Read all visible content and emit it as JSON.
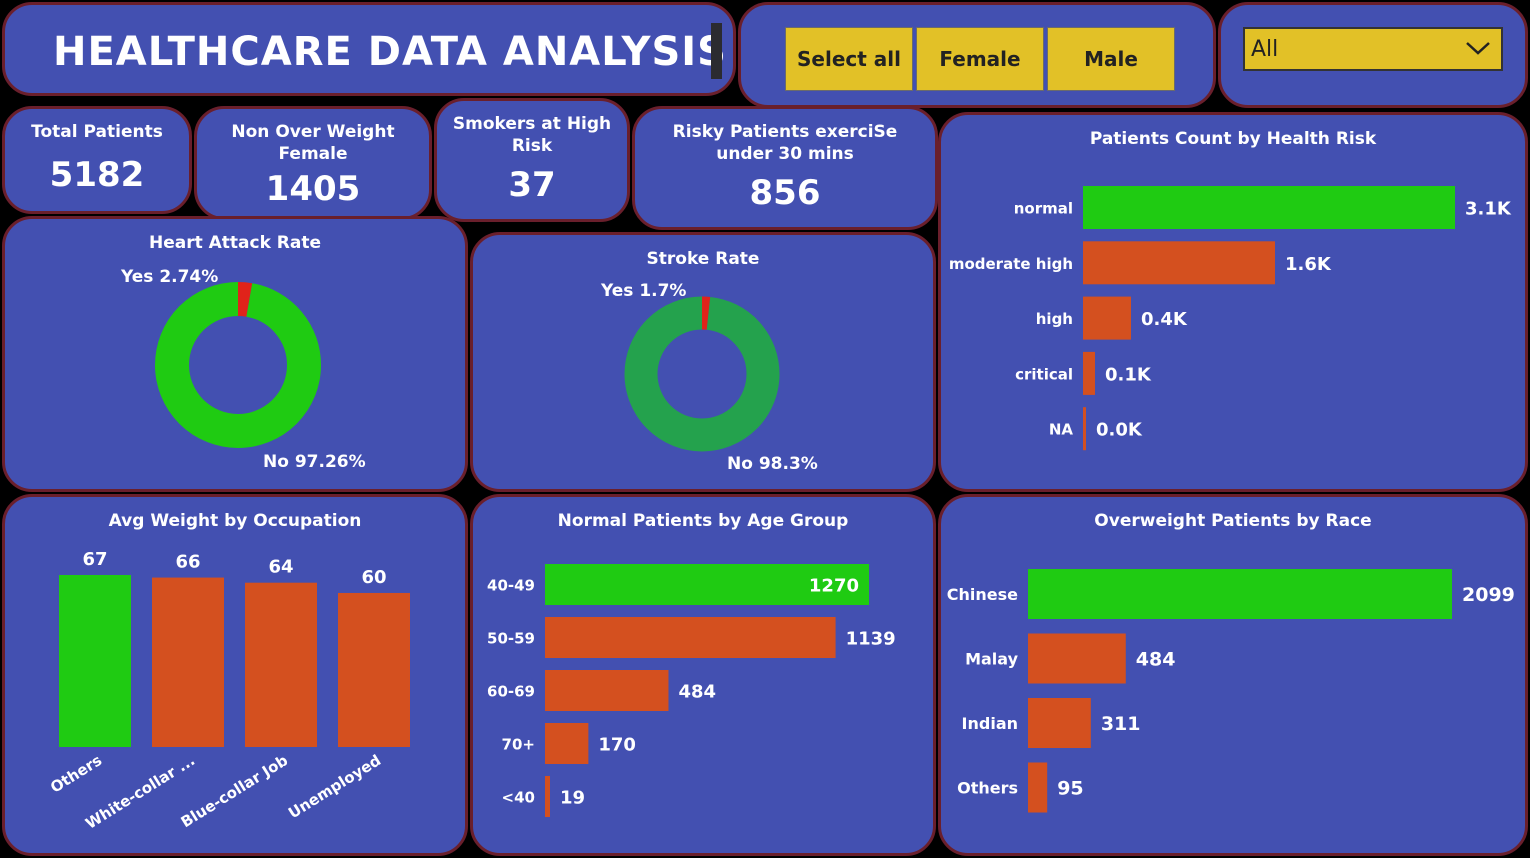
{
  "header": {
    "title": "HEALTHCARE DATA ANALYSIS"
  },
  "slicer": {
    "buttons": [
      "Select all",
      "Female",
      "Male"
    ],
    "dropdown_value": "All"
  },
  "kpis": [
    {
      "label": "Total Patients",
      "value": "5182"
    },
    {
      "label": "Non Over Weight Female",
      "value": "1405"
    },
    {
      "label": "Smokers at High Risk",
      "value": "37"
    },
    {
      "label": "Risky Patients exerciSe under 30 mins",
      "value": "856"
    }
  ],
  "colors": {
    "panel": "#4350b1",
    "border": "#6a1f2c",
    "highlight": "#1fcb12",
    "bar": "#d4501f",
    "stroke_no": "#24a24d",
    "yes": "#e0231a",
    "slicer": "#e2c127"
  },
  "chart_data": [
    {
      "type": "pie",
      "title": "Heart Attack Rate",
      "categories": [
        "Yes",
        "No"
      ],
      "values": [
        2.74,
        97.26
      ],
      "labels": [
        "Yes 2.74%",
        "No 97.26%"
      ]
    },
    {
      "type": "pie",
      "title": "Stroke Rate",
      "categories": [
        "Yes",
        "No"
      ],
      "values": [
        1.7,
        98.3
      ],
      "labels": [
        "Yes 1.7%",
        "No 98.3%"
      ]
    },
    {
      "type": "bar",
      "orientation": "horizontal",
      "title": "Patients Count by Health Risk",
      "categories": [
        "normal",
        "moderate high",
        "high",
        "critical",
        "NA"
      ],
      "values": [
        3.1,
        1.6,
        0.4,
        0.1,
        0.0
      ],
      "labels": [
        "3.1K",
        "1.6K",
        "0.4K",
        "0.1K",
        "0.0K"
      ],
      "unit": "K"
    },
    {
      "type": "bar",
      "orientation": "vertical",
      "title": "Avg Weight by Occupation",
      "categories": [
        "Others",
        "White-collar ...",
        "Blue-collar Job",
        "Unemployed"
      ],
      "values": [
        67,
        66,
        64,
        60
      ]
    },
    {
      "type": "bar",
      "orientation": "horizontal",
      "title": "Normal Patients by Age Group",
      "categories": [
        "40-49",
        "50-59",
        "60-69",
        "70+",
        "<40"
      ],
      "values": [
        1270,
        1139,
        484,
        170,
        19
      ]
    },
    {
      "type": "bar",
      "orientation": "horizontal",
      "title": "Overweight Patients by Race",
      "categories": [
        "Chinese",
        "Malay",
        "Indian",
        "Others"
      ],
      "values": [
        2099,
        484,
        311,
        95
      ]
    }
  ]
}
